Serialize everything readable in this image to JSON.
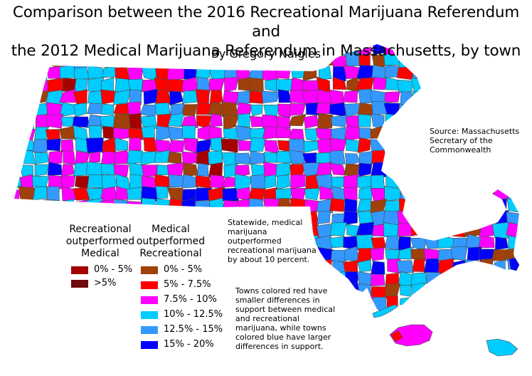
{
  "title_line1": "Comparison between the 2016 Recreational Marijuana Referendum and",
  "title_line2": "the 2012 Medical Marijuana Referendum in Massachusetts, by town",
  "byline": "By Gregory Naigles",
  "source": [
    "Source: Massachusetts",
    "Secretary of the",
    "Commonwealth"
  ],
  "statewide_note": [
    "Statewide, medical",
    "marijuana",
    "outperformed",
    "recreational marijuana",
    "by about 10 percent."
  ],
  "towns_note": [
    "Towns colored red have",
    "smaller differences in",
    "support between medical",
    "and recreational",
    "marijuana, while towns",
    "colored blue have larger",
    "differences in support."
  ],
  "legend": {
    "recreational_heading": [
      "Recreational",
      "outperformed",
      "Medical"
    ],
    "medical_heading": [
      "Medical",
      "outperformed",
      "Recreational"
    ],
    "recreational_items": [
      {
        "label": "0% - 5%",
        "color": "#a50000"
      },
      {
        "label": ">5%",
        "color": "#6e0a0a"
      }
    ],
    "medical_items": [
      {
        "label": "0% - 5%",
        "color": "#a0400a"
      },
      {
        "label": "5% - 7.5%",
        "color": "#ff0000"
      },
      {
        "label": "7.5% - 10%",
        "color": "#ff00ff"
      },
      {
        "label": "10% - 12.5%",
        "color": "#00ccff"
      },
      {
        "label": "12.5% - 15%",
        "color": "#3399ff"
      },
      {
        "label": "15% - 20%",
        "color": "#0000ff"
      }
    ]
  }
}
